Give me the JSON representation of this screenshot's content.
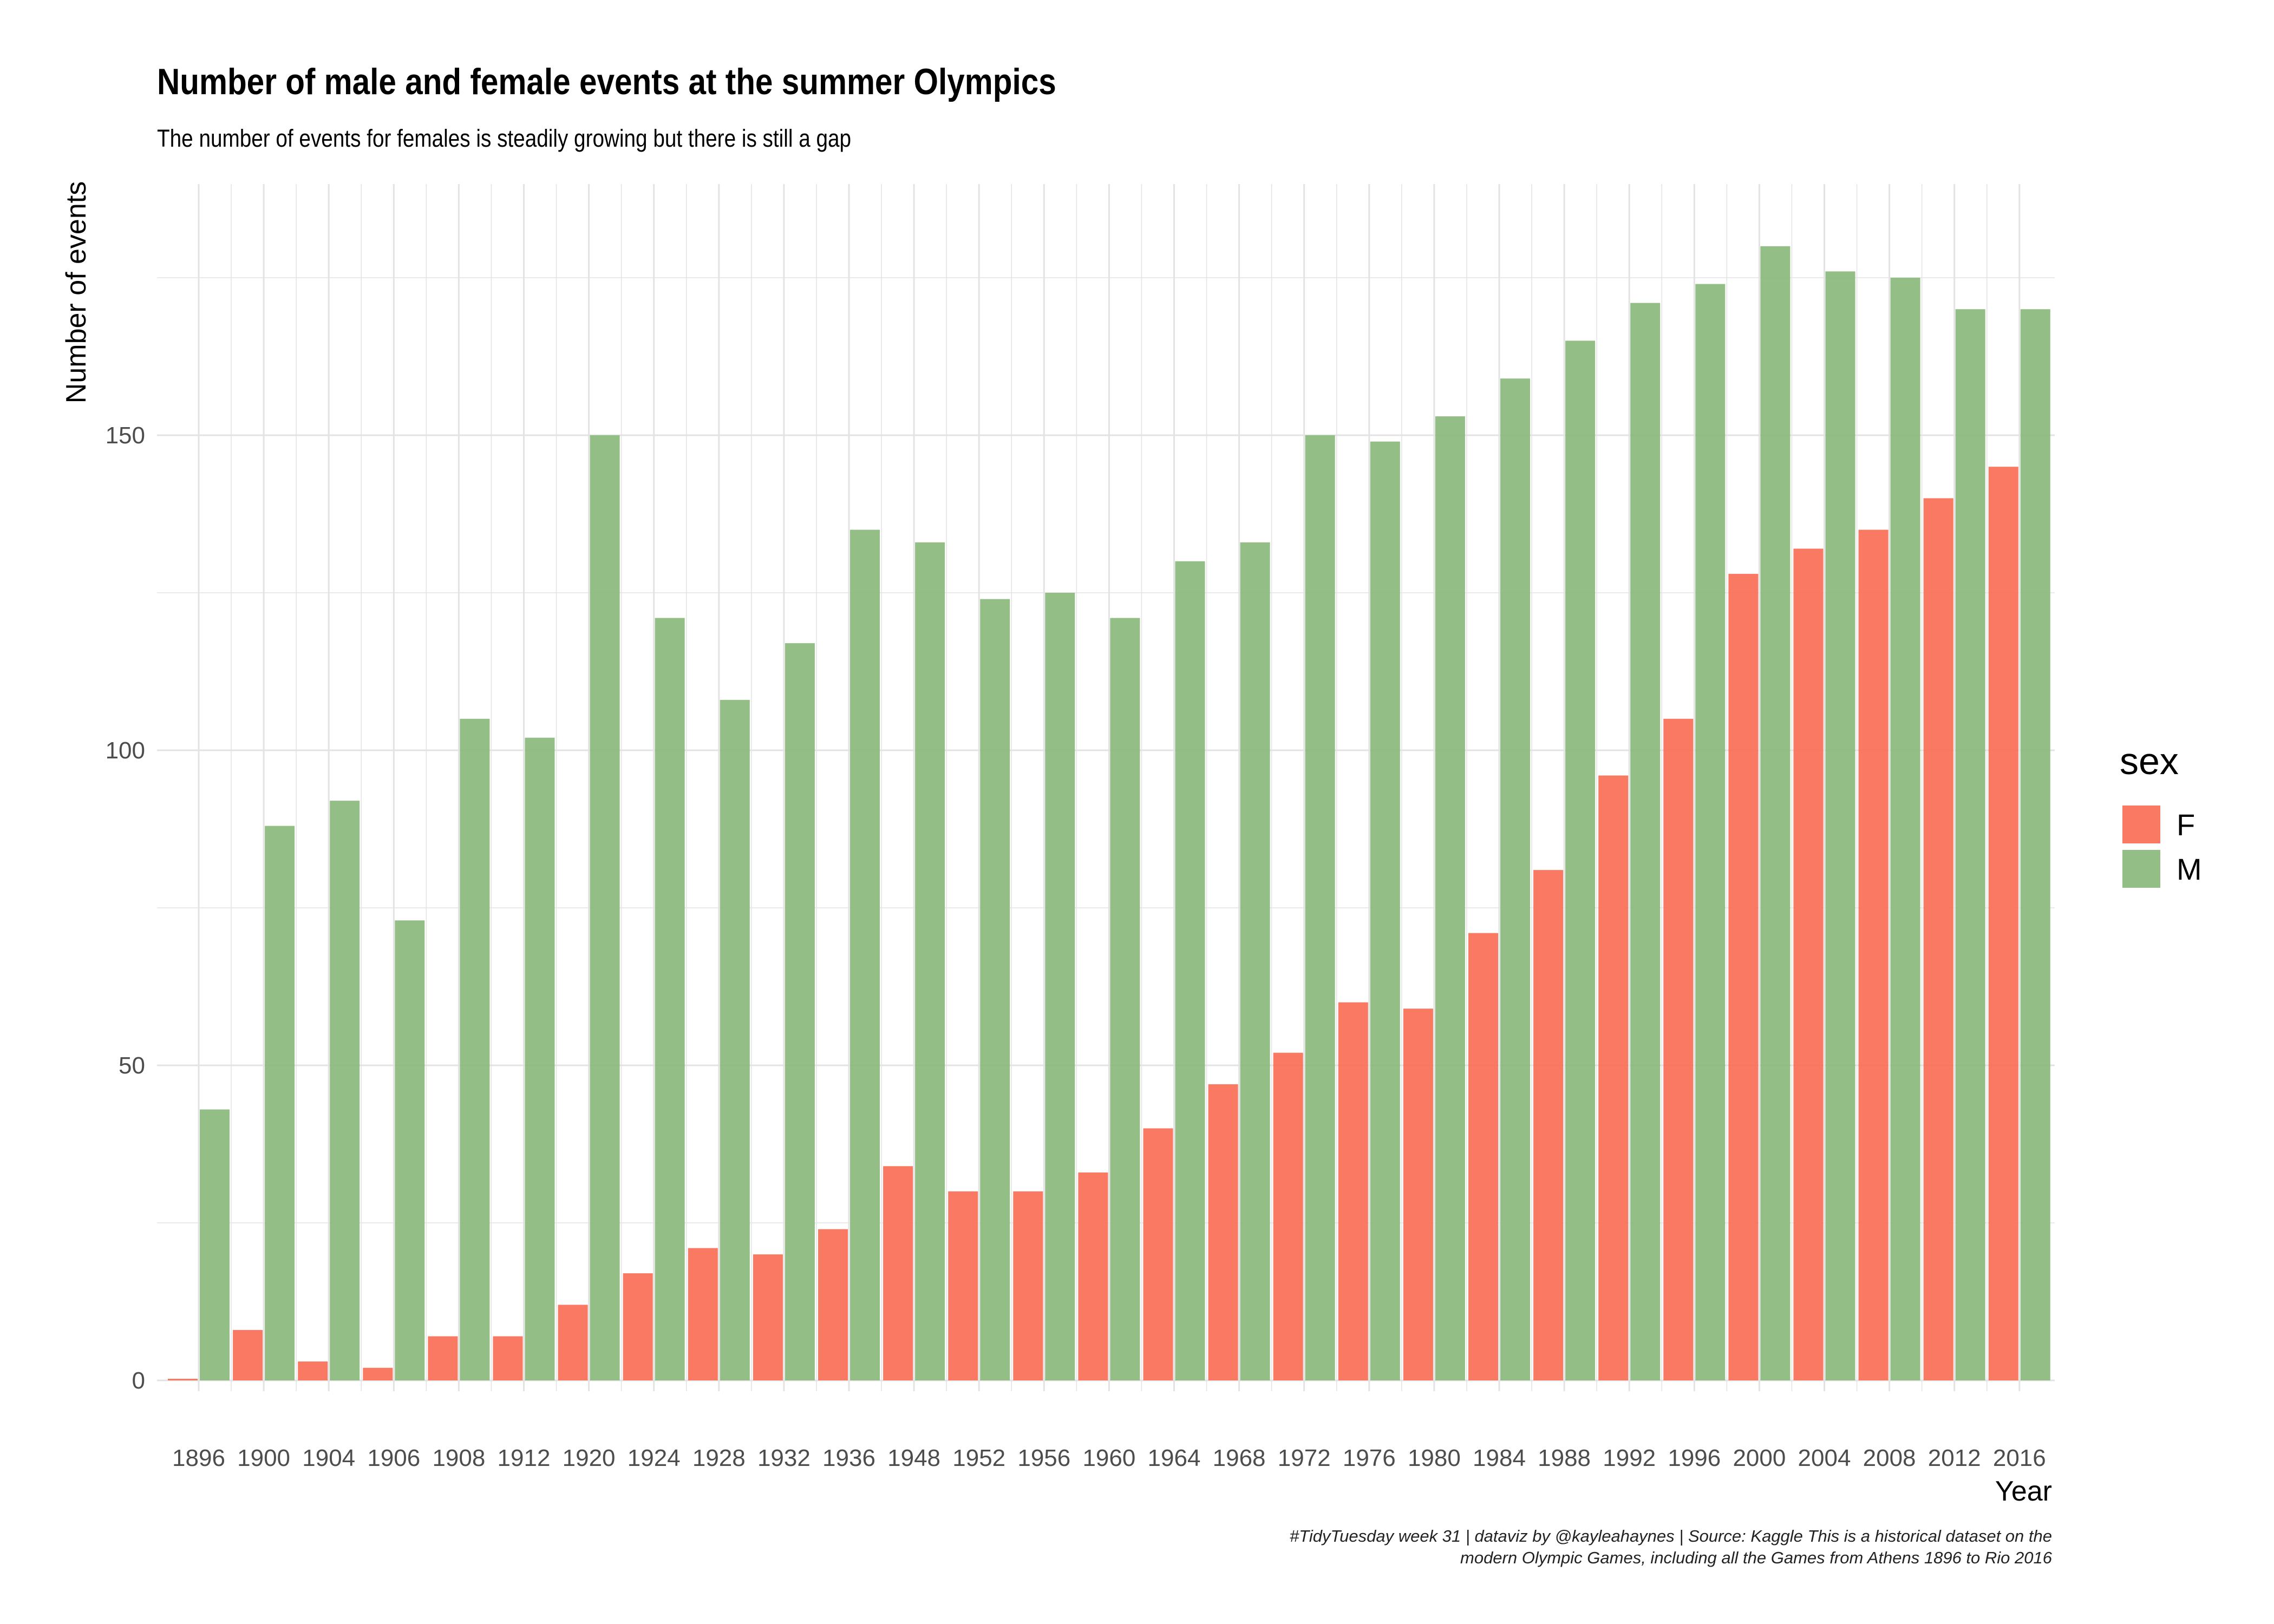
{
  "title": "Number of male and female events at the summer Olympics",
  "subtitle": "The number of events for females is steadily growing but there is still a gap",
  "caption": {
    "line1": "#TidyTuesday week 31 | dataviz by @kayleahaynes | Source: Kaggle This is a historical dataset on the",
    "line2": "modern Olympic Games, including all the Games from Athens 1896 to Rio 2016"
  },
  "colors": {
    "F": "#fa6a52",
    "M": "#87b87a",
    "grid": "#e3e3e3",
    "background": "#ffffff"
  },
  "chart_data": {
    "type": "bar",
    "xlabel": "Year",
    "ylabel": "Number of events",
    "ylim": [
      0,
      188
    ],
    "yticks": [
      0,
      50,
      100,
      150
    ],
    "grid": true,
    "legend": {
      "title": "sex",
      "position": "right"
    },
    "categories": [
      "1896",
      "1900",
      "1904",
      "1906",
      "1908",
      "1912",
      "1920",
      "1924",
      "1928",
      "1932",
      "1936",
      "1948",
      "1952",
      "1956",
      "1960",
      "1964",
      "1968",
      "1972",
      "1976",
      "1980",
      "1984",
      "1988",
      "1992",
      "1996",
      "2000",
      "2004",
      "2008",
      "2012",
      "2016"
    ],
    "series": [
      {
        "name": "F",
        "color": "#fa6a52",
        "values": [
          0,
          8,
          3,
          2,
          7,
          7,
          12,
          17,
          21,
          20,
          24,
          34,
          30,
          30,
          33,
          40,
          47,
          52,
          60,
          59,
          71,
          81,
          96,
          105,
          128,
          132,
          135,
          140,
          145
        ]
      },
      {
        "name": "M",
        "color": "#87b87a",
        "values": [
          43,
          88,
          92,
          73,
          105,
          102,
          150,
          121,
          108,
          117,
          135,
          133,
          124,
          125,
          121,
          130,
          133,
          150,
          149,
          153,
          159,
          165,
          171,
          174,
          180,
          176,
          175,
          170,
          170
        ]
      }
    ]
  }
}
